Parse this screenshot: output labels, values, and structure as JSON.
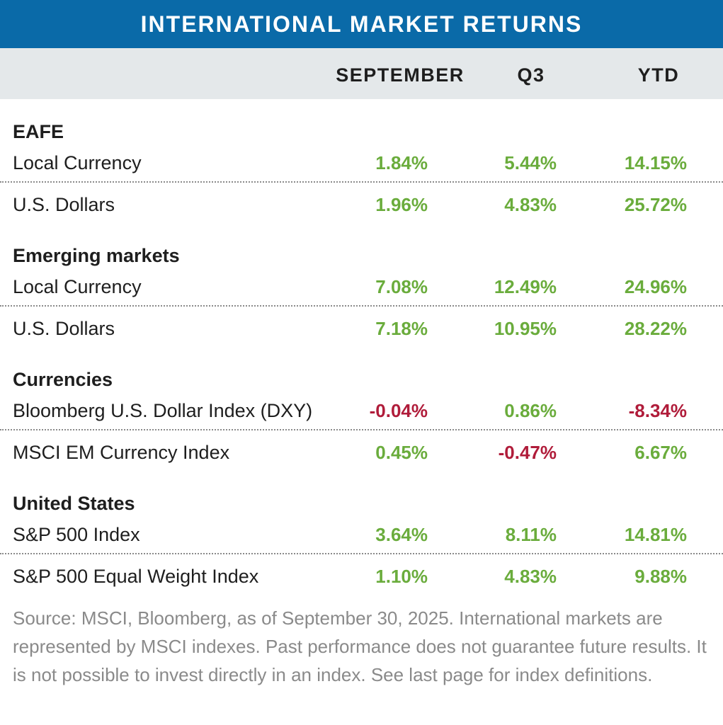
{
  "title": "INTERNATIONAL MARKET RETURNS",
  "columns": {
    "september": "SEPTEMBER",
    "q3": "Q3",
    "ytd": "YTD"
  },
  "colors": {
    "header_bg": "#0a6aa8",
    "subheader_bg": "#e4e8ea",
    "positive": "#6aac3c",
    "negative": "#b01c3a",
    "source_text": "#8a8a8a"
  },
  "groups": [
    {
      "title": "EAFE",
      "rows": [
        {
          "label": "Local Currency",
          "september": "1.84%",
          "q3": "5.44%",
          "ytd": "14.15%"
        },
        {
          "label": "U.S. Dollars",
          "september": "1.96%",
          "q3": "4.83%",
          "ytd": "25.72%"
        }
      ]
    },
    {
      "title": "Emerging markets",
      "rows": [
        {
          "label": "Local Currency",
          "september": "7.08%",
          "q3": "12.49%",
          "ytd": "24.96%"
        },
        {
          "label": "U.S. Dollars",
          "september": "7.18%",
          "q3": "10.95%",
          "ytd": "28.22%"
        }
      ]
    },
    {
      "title": "Currencies",
      "rows": [
        {
          "label": "Bloomberg U.S. Dollar Index (DXY)",
          "september": "-0.04%",
          "q3": "0.86%",
          "ytd": "-8.34%"
        },
        {
          "label": "MSCI EM Currency Index",
          "september": "0.45%",
          "q3": "-0.47%",
          "ytd": "6.67%"
        }
      ]
    },
    {
      "title": "United States",
      "rows": [
        {
          "label": "S&P 500 Index",
          "september": "3.64%",
          "q3": "8.11%",
          "ytd": "14.81%"
        },
        {
          "label": "S&P 500 Equal Weight Index",
          "september": "1.10%",
          "q3": "4.83%",
          "ytd": "9.88%"
        }
      ]
    }
  ],
  "source": "Source: MSCI, Bloomberg, as of September 30, 2025. International markets are  represented by MSCI indexes. Past performance does not guarantee future results. It is not possible to invest directly in an index. See last page for index definitions."
}
